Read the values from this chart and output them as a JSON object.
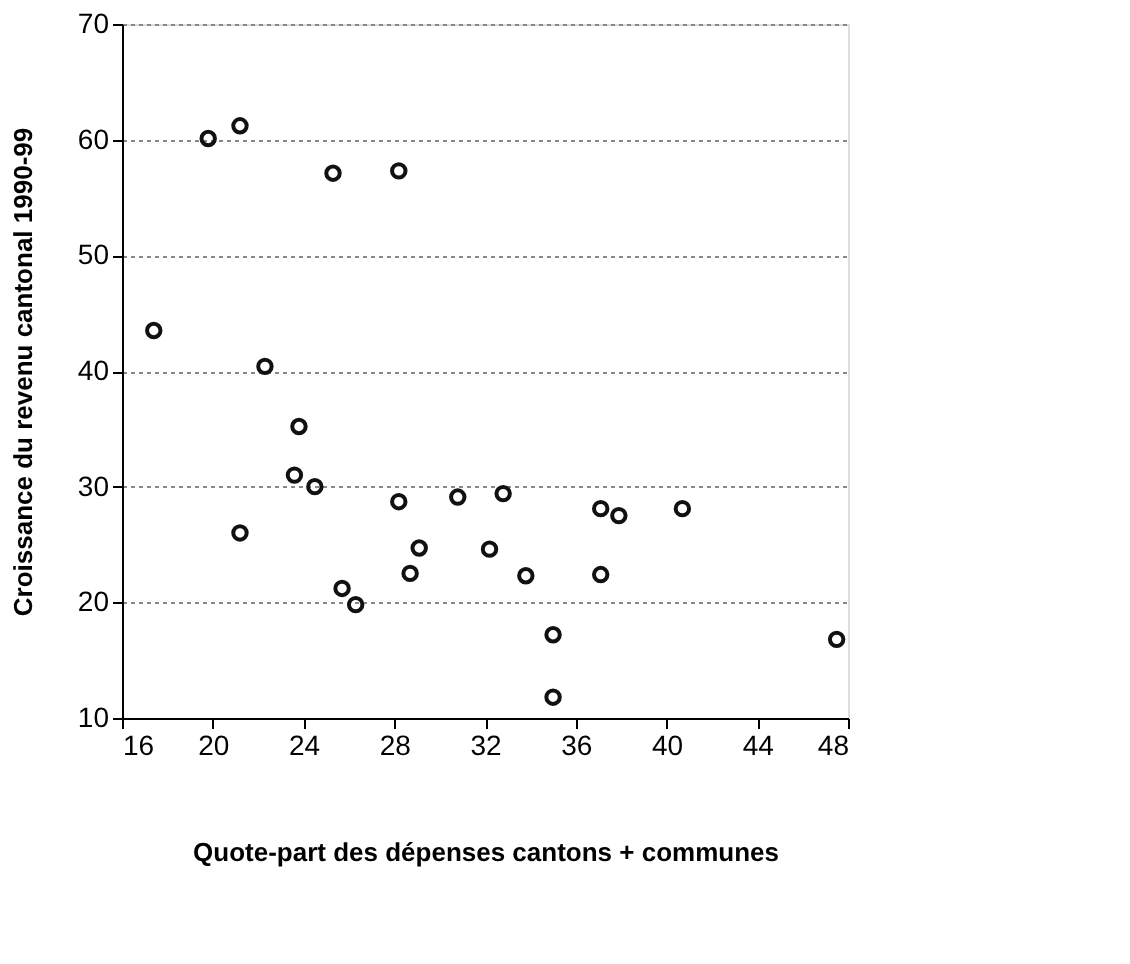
{
  "chart_data": {
    "type": "scatter",
    "xlabel": "Quote-part des dépenses cantons + communes",
    "ylabel": "Croissance du revenu cantonal 1990-99",
    "x": [
      17.4,
      19.8,
      21.2,
      21.2,
      22.3,
      23.6,
      23.8,
      24.5,
      25.3,
      25.7,
      26.3,
      28.2,
      28.2,
      28.7,
      29.1,
      30.8,
      32.2,
      32.8,
      33.8,
      35.0,
      35.0,
      37.1,
      37.1,
      37.9,
      40.7,
      47.5
    ],
    "values": [
      43.5,
      60.1,
      61.2,
      26.0,
      40.4,
      31.0,
      35.2,
      30.0,
      57.1,
      21.2,
      19.8,
      57.3,
      28.7,
      22.5,
      24.7,
      29.1,
      24.6,
      29.4,
      22.3,
      17.2,
      11.8,
      28.1,
      22.4,
      27.5,
      28.1,
      16.8
    ],
    "color": "#111111",
    "xlim": [
      16,
      48
    ],
    "xticks": [
      16,
      20,
      24,
      28,
      32,
      36,
      40,
      44,
      48
    ],
    "ylim": [
      10,
      70
    ],
    "yticks": [
      10,
      20,
      30,
      40,
      50,
      60,
      70
    ],
    "grid": "y",
    "marker": "circle"
  }
}
